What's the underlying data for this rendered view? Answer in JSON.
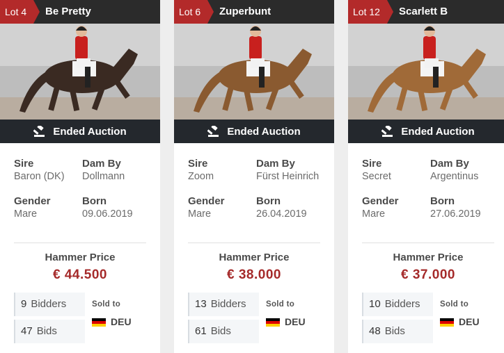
{
  "status_label": "Ended Auction",
  "labels": {
    "sire": "Sire",
    "dam_by": "Dam By",
    "gender": "Gender",
    "born": "Born",
    "hammer_price": "Hammer Price",
    "bidders": "Bidders",
    "bids": "Bids",
    "sold_to": "Sold to"
  },
  "flag_colors": [
    "#000000",
    "#dd0000",
    "#ffce00"
  ],
  "lots": [
    {
      "lot": "Lot 4",
      "name": "Be Pretty",
      "sire": "Baron (DK)",
      "dam_by": "Dollmann",
      "gender": "Mare",
      "born": "09.06.2019",
      "price": "€ 44.500",
      "bidders": "9",
      "bids": "47",
      "country": "DEU",
      "horse_color": "#3a2a22"
    },
    {
      "lot": "Lot 6",
      "name": "Zuperbunt",
      "sire": "Zoom",
      "dam_by": "Fürst Heinrich",
      "gender": "Mare",
      "born": "26.04.2019",
      "price": "€ 38.000",
      "bidders": "13",
      "bids": "61",
      "country": "DEU",
      "horse_color": "#8a5a30"
    },
    {
      "lot": "Lot 12",
      "name": "Scarlett B",
      "sire": "Secret",
      "dam_by": "Argentinus",
      "gender": "Mare",
      "born": "27.06.2019",
      "price": "€ 37.000",
      "bidders": "10",
      "bids": "48",
      "country": "DEU",
      "horse_color": "#a06a38"
    }
  ]
}
